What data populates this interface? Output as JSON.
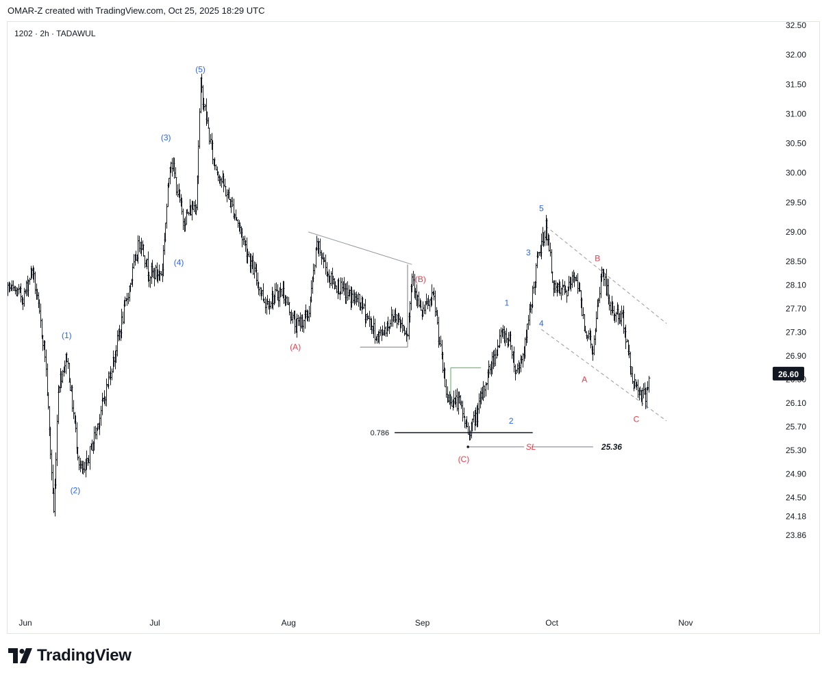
{
  "header": {
    "credit": "OMAR-Z created with TradingView.com, Oct 25, 2025 18:29 UTC"
  },
  "symbol": {
    "text": "1202 · 2h · TADAWUL"
  },
  "branding": {
    "name": "TradingView",
    "logo_icon": "tv-logo-icon"
  },
  "colors": {
    "candle": "#131722",
    "wave_blue": "#2962ff",
    "wave_red": "#f23645",
    "fib_green": "#4caf50",
    "channel": "#9598a1",
    "guide": "#787b86"
  },
  "chart_data": {
    "type": "ohlc",
    "symbol": "1202",
    "interval": "2h",
    "exchange": "TADAWUL",
    "y_axis": {
      "side": "right",
      "ylim": [
        23.7,
        32.5
      ],
      "ticks": [
        "32.50",
        "32.00",
        "31.50",
        "31.00",
        "30.50",
        "30.00",
        "29.50",
        "29.00",
        "28.50",
        "28.10",
        "27.70",
        "27.30",
        "26.90",
        "26.50",
        "26.10",
        "25.70",
        "25.30",
        "24.90",
        "24.50",
        "24.18",
        "23.86"
      ]
    },
    "x_axis": {
      "labels": [
        "Jun",
        "Jul",
        "Aug",
        "Sep",
        "Oct",
        "Nov"
      ]
    },
    "last_price": "26.60",
    "anchors": [
      {
        "d": "May 26",
        "p": 28.2
      },
      {
        "d": "Jun 2",
        "p": 27.9
      },
      {
        "d": "Jun 4",
        "p": 28.4
      },
      {
        "d": "Jun 7",
        "p": 26.9
      },
      {
        "d": "Jun 9",
        "p": 24.2
      },
      {
        "d": "Jun 10",
        "p": 26.4
      },
      {
        "d": "Jun 12",
        "p": 26.9
      },
      {
        "d": "Jun 15",
        "p": 25.0
      },
      {
        "d": "Jun 16",
        "p": 24.9
      },
      {
        "d": "Jun 19",
        "p": 25.7
      },
      {
        "d": "Jun 23",
        "p": 26.9
      },
      {
        "d": "Jun 26",
        "p": 27.9
      },
      {
        "d": "Jun 29",
        "p": 28.9
      },
      {
        "d": "Jul 1",
        "p": 28.3
      },
      {
        "d": "Jul 4",
        "p": 28.3
      },
      {
        "d": "Jul 6",
        "p": 30.3
      },
      {
        "d": "Jul 9",
        "p": 29.2
      },
      {
        "d": "Jul 12",
        "p": 29.5
      },
      {
        "d": "Jul 13",
        "p": 31.5
      },
      {
        "d": "Jul 16",
        "p": 30.2
      },
      {
        "d": "Jul 21",
        "p": 29.3
      },
      {
        "d": "Jul 25",
        "p": 28.4
      },
      {
        "d": "Jul 28",
        "p": 27.8
      },
      {
        "d": "Aug 1",
        "p": 28.0
      },
      {
        "d": "Aug 4",
        "p": 27.4
      },
      {
        "d": "Aug 7",
        "p": 27.6
      },
      {
        "d": "Aug 9",
        "p": 28.8
      },
      {
        "d": "Aug 12",
        "p": 28.2
      },
      {
        "d": "Aug 15",
        "p": 28.0
      },
      {
        "d": "Aug 19",
        "p": 27.8
      },
      {
        "d": "Aug 23",
        "p": 27.2
      },
      {
        "d": "Aug 27",
        "p": 27.6
      },
      {
        "d": "Aug 30",
        "p": 27.3
      },
      {
        "d": "Aug 31",
        "p": 28.3
      },
      {
        "d": "Sep 2",
        "p": 27.6
      },
      {
        "d": "Sep 5",
        "p": 27.9
      },
      {
        "d": "Sep 8",
        "p": 26.2
      },
      {
        "d": "Sep 11",
        "p": 26.1
      },
      {
        "d": "Sep 13",
        "p": 25.6
      },
      {
        "d": "Sep 15",
        "p": 25.9
      },
      {
        "d": "Sep 18",
        "p": 26.7
      },
      {
        "d": "Sep 21",
        "p": 27.3
      },
      {
        "d": "Sep 23",
        "p": 27.1
      },
      {
        "d": "Sep 24",
        "p": 26.6
      },
      {
        "d": "Sep 26",
        "p": 27.0
      },
      {
        "d": "Sep 29",
        "p": 28.5
      },
      {
        "d": "Oct 1",
        "p": 29.1
      },
      {
        "d": "Oct 3",
        "p": 28.0
      },
      {
        "d": "Oct 6",
        "p": 28.0
      },
      {
        "d": "Oct 8",
        "p": 28.3
      },
      {
        "d": "Oct 10",
        "p": 27.4
      },
      {
        "d": "Oct 12",
        "p": 27.0
      },
      {
        "d": "Oct 14",
        "p": 28.4
      },
      {
        "d": "Oct 16",
        "p": 27.7
      },
      {
        "d": "Oct 19",
        "p": 27.5
      },
      {
        "d": "Oct 21",
        "p": 26.5
      },
      {
        "d": "Oct 24",
        "p": 26.2
      },
      {
        "d": "Oct 25",
        "p": 26.6
      }
    ],
    "wave_labels": [
      {
        "text": "(1)",
        "d": "Jun 12",
        "p": 27.25,
        "color": "wave_blue"
      },
      {
        "text": "(2)",
        "d": "Jun 14",
        "p": 24.62,
        "color": "wave_blue"
      },
      {
        "text": "(3)",
        "d": "Jul 5",
        "p": 30.6,
        "color": "wave_blue"
      },
      {
        "text": "(4)",
        "d": "Jul 8",
        "p": 28.48,
        "color": "wave_blue"
      },
      {
        "text": "(5)",
        "d": "Jul 13",
        "p": 31.75,
        "color": "wave_blue"
      },
      {
        "text": "(A)",
        "d": "Aug 4",
        "p": 27.05,
        "color": "wave_red"
      },
      {
        "text": "(B)",
        "d": "Sep 2",
        "p": 28.2,
        "color": "wave_red"
      },
      {
        "text": "(C)",
        "d": "Sep 12",
        "p": 25.15,
        "color": "wave_red"
      },
      {
        "text": "1",
        "d": "Sep 22",
        "p": 27.8,
        "color": "wave_blue"
      },
      {
        "text": "2",
        "d": "Sep 23",
        "p": 25.8,
        "color": "wave_blue"
      },
      {
        "text": "3",
        "d": "Sep 27",
        "p": 28.65,
        "color": "wave_blue"
      },
      {
        "text": "4",
        "d": "Sep 30",
        "p": 27.45,
        "color": "wave_blue"
      },
      {
        "text": "5",
        "d": "Sep 30",
        "p": 29.4,
        "color": "wave_blue"
      },
      {
        "text": "A",
        "d": "Oct 10",
        "p": 26.5,
        "color": "wave_red"
      },
      {
        "text": "B",
        "d": "Oct 13",
        "p": 28.55,
        "color": "wave_red"
      },
      {
        "text": "C",
        "d": "Oct 22",
        "p": 25.83,
        "color": "wave_red"
      }
    ],
    "fib_level": {
      "ratio": "0.786",
      "price": 25.6
    },
    "stop_loss": {
      "label": "SL",
      "price": "25.36",
      "value": 25.36
    },
    "trendlines": [
      {
        "from": {
          "d": "Aug 7",
          "p": 29.0
        },
        "to": {
          "d": "Aug 31",
          "p": 28.45
        },
        "color": "channel"
      },
      {
        "from": {
          "d": "Oct 1",
          "p": 29.1
        },
        "to": {
          "d": "Oct 29",
          "p": 27.45
        },
        "color": "channel",
        "dashed": true
      },
      {
        "from": {
          "d": "Sep 30",
          "p": 27.35
        },
        "to": {
          "d": "Oct 29",
          "p": 25.8
        },
        "color": "channel",
        "dashed": true
      }
    ],
    "boxes": [
      {
        "from": {
          "d": "Aug 19",
          "p": 27.05
        },
        "to": {
          "d": "Aug 30",
          "p": 27.05
        },
        "color": "guide"
      },
      {
        "from": {
          "d": "Sep 9",
          "p": 26.7
        },
        "to": {
          "d": "Sep 16",
          "p": 26.7
        },
        "color": "fib_green"
      }
    ]
  }
}
